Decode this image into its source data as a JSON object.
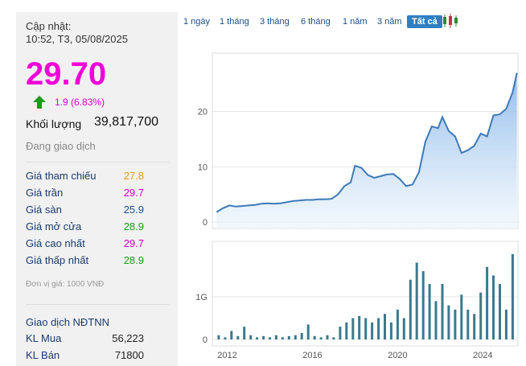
{
  "sidebar": {
    "updated_label": "Cập nhật:",
    "updated_time": "10:52, T3, 05/08/2025",
    "price": "29.70",
    "change": "1.9 (6.83%)",
    "volume_label": "Khối lượng",
    "volume_value": "39,817,700",
    "status": "Đang giao dịch",
    "rows": [
      {
        "label": "Giá tham chiếu",
        "value": "27.8",
        "color": "#d4a017"
      },
      {
        "label": "Giá trần",
        "value": "29.7",
        "color": "#d100c0"
      },
      {
        "label": "Giá sàn",
        "value": "25.9",
        "color": "#1a4e8a"
      },
      {
        "label": "Giá mở cửa",
        "value": "28.9",
        "color": "#1a9a1a"
      },
      {
        "label": "Giá cao nhất",
        "value": "29.7",
        "color": "#d100c0"
      },
      {
        "label": "Giá thấp nhất",
        "value": "28.9",
        "color": "#1a9a1a"
      }
    ],
    "unit_note": "Đơn vị giá: 1000 VNĐ",
    "foreign_title": "Giao dịch NĐTNN",
    "foreign_rows": [
      {
        "label": "KL Mua",
        "value": "56,223"
      },
      {
        "label": "KL Bán",
        "value": "71800"
      }
    ],
    "price_color": "#f000d8",
    "up_color": "#1a9a1a"
  },
  "tabs": {
    "items": [
      "1 ngày",
      "1 tháng",
      "3 tháng",
      "6 tháng",
      "1 năm",
      "3 năm",
      "Tất cả"
    ],
    "active": "Tất cả",
    "chart_type_icon": "candlestick-icon"
  },
  "chart_data": [
    {
      "type": "area",
      "title": "",
      "x": [
        2011.5,
        2011.8,
        2012.1,
        2012.4,
        2012.7,
        2013.0,
        2013.3,
        2013.6,
        2013.9,
        2014.2,
        2014.5,
        2014.8,
        2015.1,
        2015.4,
        2015.7,
        2016.0,
        2016.3,
        2016.6,
        2016.9,
        2017.2,
        2017.5,
        2017.8,
        2018.0,
        2018.3,
        2018.6,
        2018.9,
        2019.2,
        2019.5,
        2019.8,
        2020.1,
        2020.4,
        2020.7,
        2021.0,
        2021.3,
        2021.6,
        2021.9,
        2022.1,
        2022.4,
        2022.7,
        2023.0,
        2023.3,
        2023.6,
        2023.9,
        2024.2,
        2024.5,
        2024.8,
        2025.1,
        2025.4,
        2025.6
      ],
      "y": [
        1.8,
        2.5,
        3.0,
        2.8,
        2.9,
        3.0,
        3.1,
        3.3,
        3.4,
        3.3,
        3.4,
        3.6,
        3.8,
        3.9,
        4.0,
        4.0,
        4.1,
        4.1,
        4.2,
        5.0,
        6.5,
        7.2,
        10.2,
        9.8,
        8.5,
        8.0,
        8.3,
        8.6,
        8.7,
        7.8,
        6.5,
        6.8,
        9.0,
        14.5,
        17.3,
        17.0,
        19.0,
        16.5,
        15.5,
        12.5,
        13.0,
        13.8,
        16.0,
        15.5,
        19.3,
        19.5,
        20.5,
        23.5,
        27.0
      ],
      "xlim": [
        2011.3,
        2025.65
      ],
      "ylim": [
        0,
        30
      ],
      "ylabel_ticks": [
        "0",
        "10",
        "20"
      ],
      "ytick_values": [
        0,
        10,
        20
      ],
      "line_color": "#3d7ab8"
    },
    {
      "type": "bar",
      "x": [
        2011.6,
        2011.9,
        2012.2,
        2012.5,
        2012.8,
        2013.1,
        2013.4,
        2013.7,
        2014.0,
        2014.3,
        2014.6,
        2014.9,
        2015.2,
        2015.5,
        2015.8,
        2016.1,
        2016.4,
        2016.7,
        2017.0,
        2017.3,
        2017.6,
        2017.9,
        2018.2,
        2018.5,
        2018.8,
        2019.1,
        2019.4,
        2019.7,
        2020.0,
        2020.3,
        2020.6,
        2020.9,
        2021.2,
        2021.5,
        2021.8,
        2022.1,
        2022.4,
        2022.7,
        2023.0,
        2023.3,
        2023.6,
        2023.9,
        2024.2,
        2024.5,
        2024.8,
        2025.1,
        2025.4
      ],
      "values": [
        0.1,
        0.05,
        0.2,
        0.08,
        0.3,
        0.1,
        0.05,
        0.08,
        0.05,
        0.1,
        0.05,
        0.08,
        0.1,
        0.15,
        0.35,
        0.08,
        0.05,
        0.1,
        0.05,
        0.3,
        0.4,
        0.5,
        0.55,
        0.5,
        0.4,
        0.5,
        0.6,
        0.4,
        0.7,
        0.5,
        1.4,
        1.8,
        1.6,
        1.3,
        0.9,
        1.3,
        0.8,
        0.7,
        1.05,
        0.7,
        0.6,
        1.1,
        1.7,
        1.5,
        1.3,
        0.7,
        2.0
      ],
      "ylim": [
        0,
        2.3
      ],
      "ylabel_ticks": [
        "0",
        "1G"
      ],
      "ytick_values": [
        0,
        1.0
      ],
      "xtick_labels": [
        "2012",
        "2016",
        "2020",
        "2024"
      ],
      "xtick_values": [
        2012,
        2016,
        2020,
        2024
      ],
      "bar_color": "#3a7a8e"
    }
  ]
}
